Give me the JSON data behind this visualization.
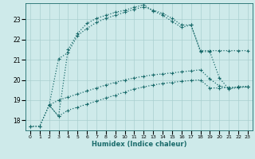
{
  "xlabel": "Humidex (Indice chaleur)",
  "background_color": "#ceeaea",
  "line_color": "#1a6b6b",
  "grid_color": "#aacfcf",
  "xlim": [
    -0.5,
    23.5
  ],
  "ylim": [
    17.5,
    23.8
  ],
  "yticks": [
    18,
    19,
    20,
    21,
    22,
    23
  ],
  "xticks": [
    0,
    1,
    2,
    3,
    4,
    5,
    6,
    7,
    8,
    9,
    10,
    11,
    12,
    13,
    14,
    15,
    16,
    17,
    18,
    19,
    20,
    21,
    22,
    23
  ],
  "lines": [
    {
      "x": [
        0,
        1,
        2,
        3,
        4,
        5,
        6,
        7,
        8,
        9,
        10,
        11,
        12,
        13,
        14,
        15,
        16,
        17,
        18,
        19,
        20,
        21,
        22,
        23
      ],
      "y": [
        17.7,
        17.7,
        18.75,
        18.2,
        18.5,
        18.65,
        18.8,
        18.95,
        19.1,
        19.25,
        19.4,
        19.55,
        19.65,
        19.75,
        19.82,
        19.88,
        19.93,
        19.97,
        20.0,
        19.6,
        19.6,
        19.62,
        19.65,
        19.68
      ]
    },
    {
      "x": [
        0,
        1,
        2,
        3,
        4,
        5,
        6,
        7,
        8,
        9,
        10,
        11,
        12,
        13,
        14,
        15,
        16,
        17,
        18,
        19,
        20,
        21,
        22,
        23
      ],
      "y": [
        17.7,
        17.7,
        18.75,
        19.0,
        19.15,
        19.3,
        19.45,
        19.6,
        19.75,
        19.88,
        20.0,
        20.1,
        20.18,
        20.25,
        20.3,
        20.35,
        20.4,
        20.45,
        20.5,
        20.05,
        19.7,
        19.6,
        19.65,
        19.68
      ]
    },
    {
      "x": [
        2,
        3,
        4,
        5,
        6,
        7,
        8,
        9,
        10,
        11,
        12,
        13,
        14,
        15,
        16,
        17,
        18,
        19,
        20,
        21,
        22,
        23
      ],
      "y": [
        18.75,
        21.05,
        21.35,
        22.2,
        22.55,
        22.85,
        23.05,
        23.2,
        23.35,
        23.5,
        23.62,
        23.45,
        23.3,
        23.05,
        22.72,
        22.72,
        21.45,
        21.45,
        21.45,
        21.45,
        21.45,
        21.45
      ]
    },
    {
      "x": [
        2,
        3,
        4,
        5,
        6,
        7,
        8,
        9,
        10,
        11,
        12,
        13,
        14,
        15,
        16,
        17,
        18,
        19,
        20,
        21,
        22,
        23
      ],
      "y": [
        18.75,
        18.2,
        21.5,
        22.3,
        22.8,
        23.05,
        23.2,
        23.35,
        23.45,
        23.6,
        23.72,
        23.42,
        23.2,
        22.9,
        22.6,
        22.72,
        21.4,
        21.4,
        20.1,
        19.55,
        19.62,
        19.65
      ]
    }
  ]
}
